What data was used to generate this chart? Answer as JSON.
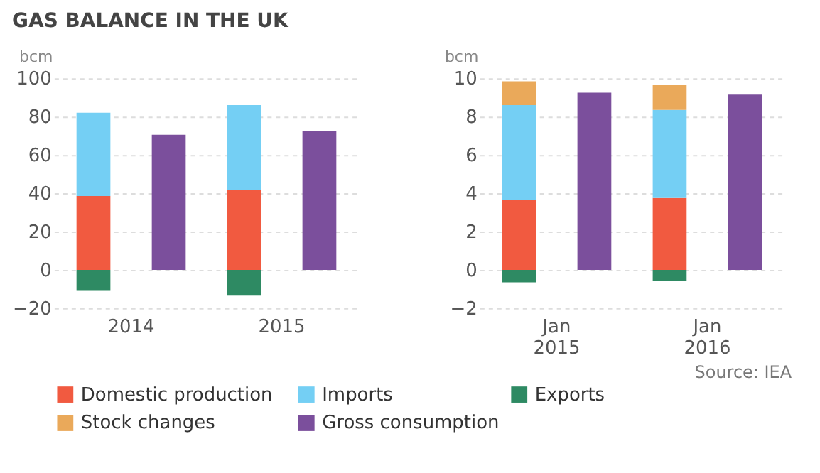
{
  "chart_data": [
    {
      "type": "bar",
      "title": "GAS BALANCE IN THE UK",
      "ylabel": "bcm",
      "categories": [
        "2014",
        null,
        "2015",
        null
      ],
      "stacked": true,
      "ylim": [
        -20,
        100
      ],
      "yticks": [
        -20,
        0,
        20,
        40,
        60,
        80,
        100
      ],
      "grid": "y",
      "legend": "bottom",
      "series": [
        {
          "name": "Domestic production",
          "color": "#f15a40",
          "values": [
            38.5,
            null,
            41.5,
            null
          ]
        },
        {
          "name": "Imports",
          "color": "#74cff4",
          "values": [
            43.5,
            null,
            44.5,
            null
          ]
        },
        {
          "name": "Exports",
          "color": "#2e8a63",
          "values": [
            -11,
            null,
            -13.5,
            null
          ]
        },
        {
          "name": "Gross consumption",
          "color": "#7b4f9c",
          "values": [
            null,
            70.5,
            null,
            72.5
          ]
        }
      ]
    },
    {
      "type": "bar",
      "ylabel": "bcm",
      "categories": [
        "Jan\n2015",
        null,
        "Jan\n2016",
        null
      ],
      "stacked": true,
      "ylim": [
        -2,
        10
      ],
      "yticks": [
        -2,
        0,
        2,
        4,
        6,
        8,
        10
      ],
      "grid": "y",
      "legend": "bottom",
      "annotations": [
        "Source: IEA"
      ],
      "series": [
        {
          "name": "Domestic production",
          "color": "#f15a40",
          "values": [
            3.65,
            null,
            3.75,
            null
          ]
        },
        {
          "name": "Imports",
          "color": "#74cff4",
          "values": [
            4.95,
            null,
            4.6,
            null
          ]
        },
        {
          "name": "Exports",
          "color": "#2e8a63",
          "values": [
            -0.65,
            null,
            -0.6,
            null
          ]
        },
        {
          "name": "Stock changes",
          "color": "#eaa95a",
          "values": [
            1.25,
            null,
            1.3,
            null
          ]
        },
        {
          "name": "Gross consumption",
          "color": "#7b4f9c",
          "values": [
            null,
            9.25,
            null,
            9.15
          ]
        }
      ]
    }
  ]
}
